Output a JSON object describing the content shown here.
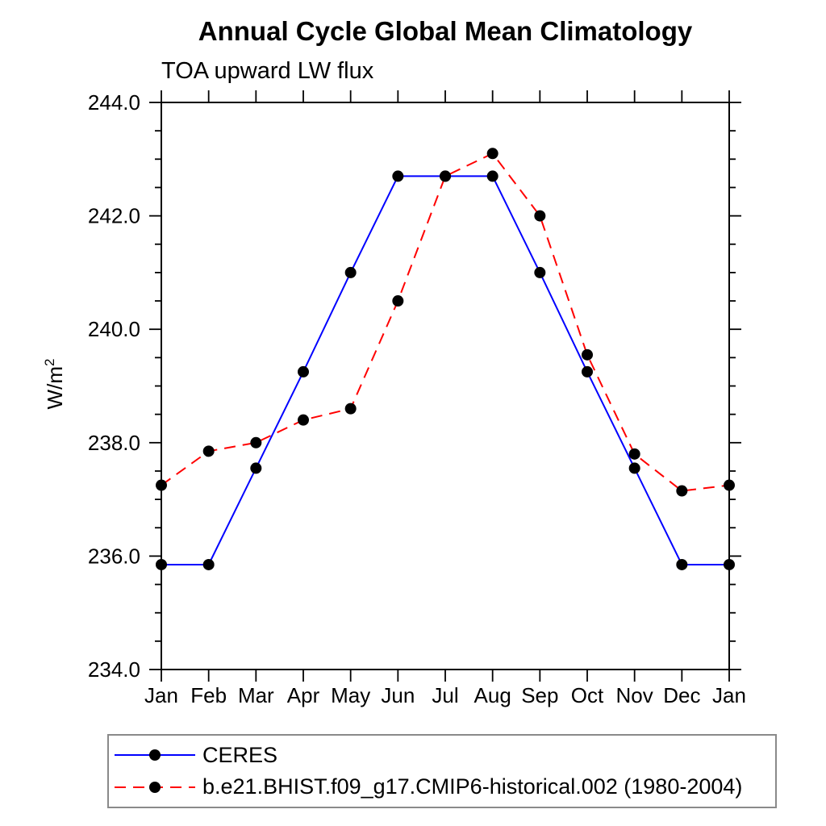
{
  "chart_data": {
    "type": "line",
    "title": "Annual Cycle Global Mean Climatology",
    "subtitle": "TOA upward LW flux",
    "ylabel": "W/m",
    "ylabel_superscript": "2",
    "categories": [
      "Jan",
      "Feb",
      "Mar",
      "Apr",
      "May",
      "Jun",
      "Jul",
      "Aug",
      "Sep",
      "Oct",
      "Nov",
      "Dec",
      "Jan"
    ],
    "ylim": [
      234.0,
      244.0
    ],
    "y_major_ticks": [
      "234.0",
      "236.0",
      "238.0",
      "240.0",
      "242.0",
      "244.0"
    ],
    "y_major_step": 2.0,
    "y_minor_step": 0.5,
    "grid": false,
    "legend_position": "bottom-left-boxed",
    "marker": "filled-black-circle",
    "series": [
      {
        "name": "CERES",
        "color": "#0000ff",
        "line_style": "solid",
        "values": [
          235.85,
          235.85,
          237.55,
          239.25,
          241.0,
          242.7,
          242.7,
          242.7,
          241.0,
          239.25,
          237.55,
          235.85,
          235.85
        ]
      },
      {
        "name": "b.e21.BHIST.f09_g17.CMIP6-historical.002 (1980-2004)",
        "color": "#ff0000",
        "line_style": "dashed",
        "values": [
          237.25,
          237.85,
          238.0,
          238.4,
          238.6,
          240.5,
          242.7,
          243.1,
          242.0,
          239.55,
          237.8,
          237.15,
          237.25
        ]
      }
    ]
  }
}
